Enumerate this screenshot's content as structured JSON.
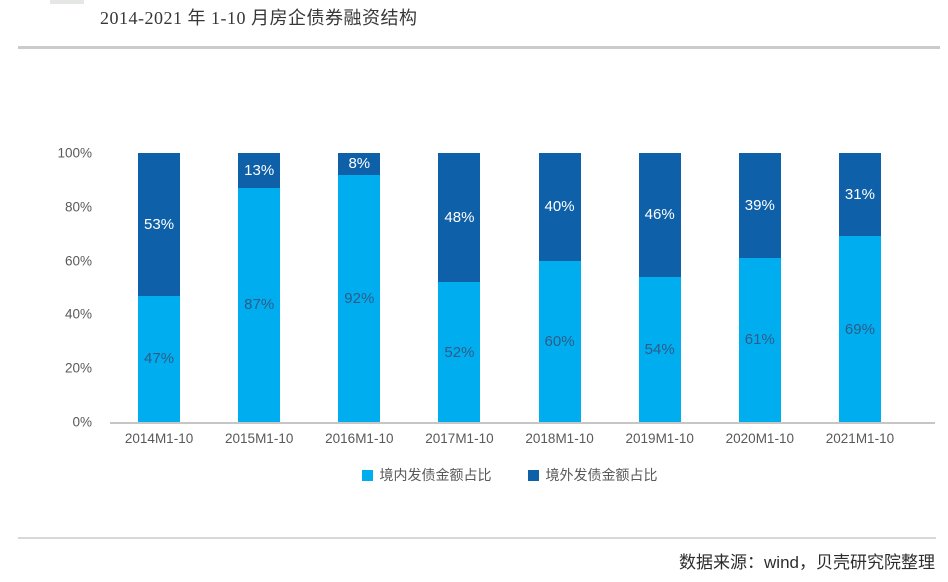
{
  "header": {
    "title": "2014-2021 年 1-10 月房企债券融资结构"
  },
  "footer": {
    "source_text": "数据来源：wind，贝壳研究院整理"
  },
  "colors": {
    "domestic": "#00AEEF",
    "overseas": "#0E60A8",
    "label_on_light": "#2E5B88",
    "label_on_dark": "#FFFFFF",
    "axis_text": "#595959"
  },
  "chart_data": {
    "type": "bar",
    "stacked": true,
    "title": "2014-2021 年 1-10 月房企债券融资结构",
    "categories": [
      "2014M1-10",
      "2015M1-10",
      "2016M1-10",
      "2017M1-10",
      "2018M1-10",
      "2019M1-10",
      "2020M1-10",
      "2021M1-10"
    ],
    "series": [
      {
        "name": "境内发债金额占比",
        "color_key": "domestic",
        "values": [
          47,
          87,
          92,
          52,
          60,
          54,
          61,
          69
        ]
      },
      {
        "name": "境外发债金额占比",
        "color_key": "overseas",
        "values": [
          53,
          13,
          8,
          48,
          40,
          46,
          39,
          31
        ]
      }
    ],
    "unit": "%",
    "xlabel": "",
    "ylabel": "",
    "ylim": [
      0,
      100
    ],
    "yticks": [
      0,
      20,
      40,
      60,
      80,
      100
    ],
    "grid": false,
    "legend_position": "bottom"
  }
}
